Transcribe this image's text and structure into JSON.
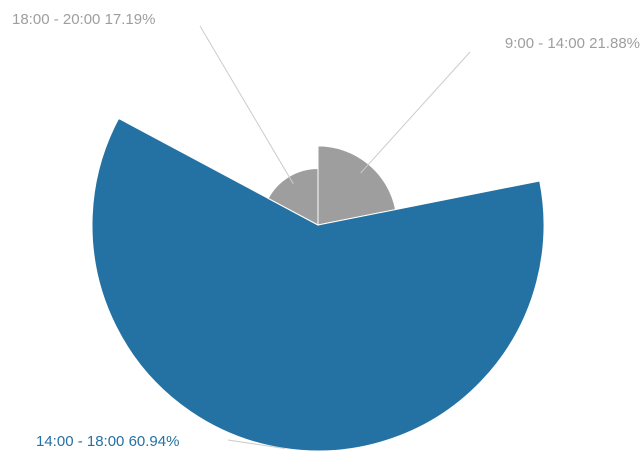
{
  "chart_data": {
    "type": "pie",
    "subtype": "variable-radius",
    "title": "",
    "start_angle_deg": 0,
    "direction": "clockwise",
    "slices": [
      {
        "label": "9:00 - 14:00 21.88%",
        "category": "9:00 - 14:00",
        "value": 21.88,
        "radius_ratio": 0.35,
        "color": "#9e9e9e",
        "label_color": "#9e9e9e"
      },
      {
        "label": "14:00 - 18:00 60.94%",
        "category": "14:00 - 18:00",
        "value": 60.94,
        "radius_ratio": 1.0,
        "color": "#2471a3",
        "label_color": "#2471a3"
      },
      {
        "label": "18:00 - 20:00 17.19%",
        "category": "18:00 - 20:00",
        "value": 17.19,
        "radius_ratio": 0.25,
        "color": "#9e9e9e",
        "label_color": "#9e9e9e"
      }
    ]
  }
}
